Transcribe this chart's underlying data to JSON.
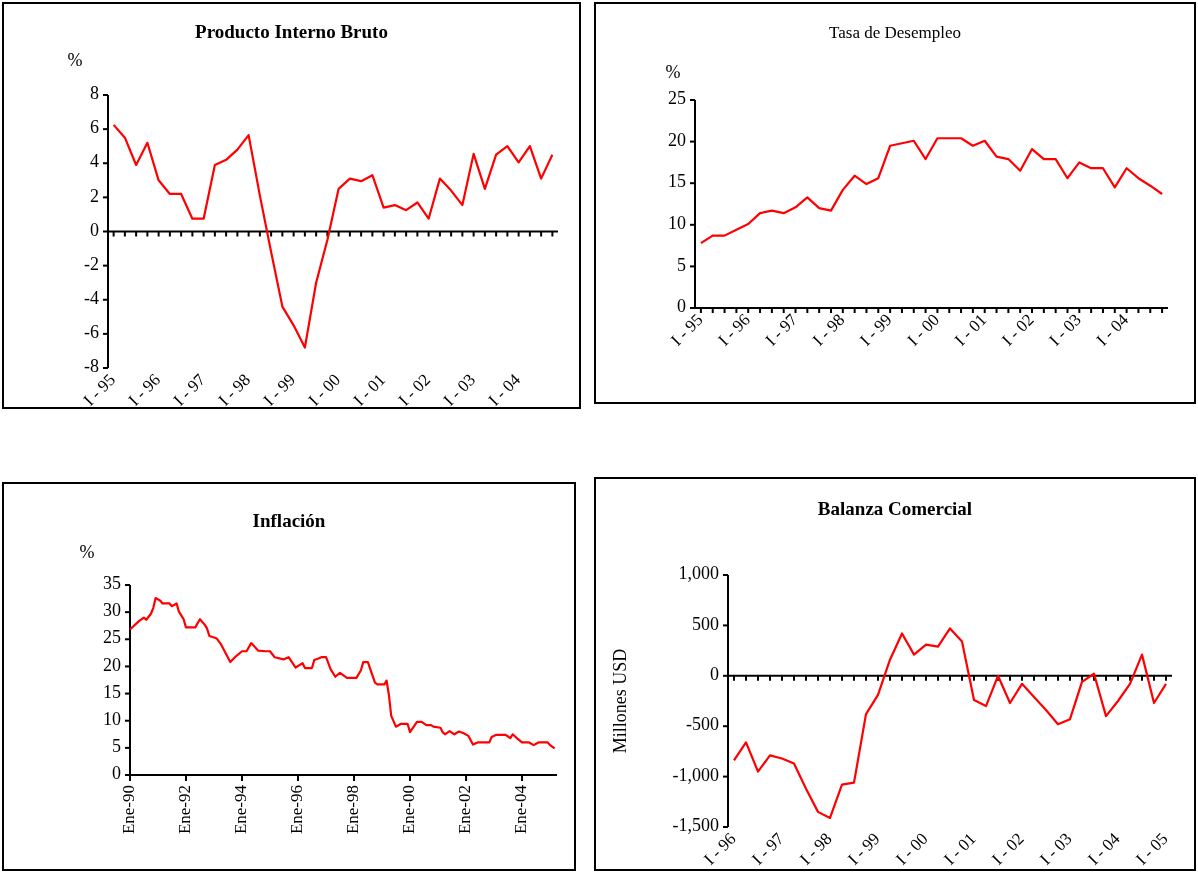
{
  "chart_data": [
    {
      "type": "line",
      "title": "Producto Interno Bruto",
      "ylabel": "%",
      "categories": [
        "I - 95",
        null,
        null,
        null,
        "I - 96",
        null,
        null,
        null,
        "I - 97",
        null,
        null,
        null,
        "I - 98",
        null,
        null,
        null,
        "I - 99",
        null,
        null,
        null,
        "I - 00",
        null,
        null,
        null,
        "I - 01",
        null,
        null,
        null,
        "I - 02",
        null,
        null,
        null,
        "I - 03",
        null,
        null,
        null,
        "I - 04",
        null,
        null,
        null
      ],
      "series": [
        {
          "color": "#ff0000",
          "values": [
            6.25,
            5.5,
            3.9,
            5.2,
            3.0,
            2.2,
            2.2,
            0.75,
            0.75,
            3.9,
            4.2,
            4.8,
            5.65,
            2.1,
            -1.2,
            -4.4,
            -5.5,
            -6.8,
            -3.0,
            -0.5,
            2.5,
            3.1,
            2.95,
            3.3,
            1.4,
            1.55,
            1.25,
            1.7,
            0.75,
            3.1,
            2.4,
            1.55,
            4.55,
            2.5,
            4.5,
            5.0,
            4.05,
            5.0,
            3.1,
            4.5
          ]
        }
      ],
      "ylim": [
        -8,
        8
      ],
      "yticks": [
        -8,
        -6,
        -4,
        -2,
        0,
        2,
        4,
        6,
        8
      ]
    },
    {
      "type": "line",
      "title": "Tasa de Desempleo",
      "ylabel": "%",
      "categories": [
        "I - 95",
        null,
        null,
        null,
        "I - 96",
        null,
        null,
        null,
        "I - 97",
        null,
        null,
        null,
        "I - 98",
        null,
        null,
        null,
        "I - 99",
        null,
        null,
        null,
        "I - 00",
        null,
        null,
        null,
        "I - 01",
        null,
        null,
        null,
        "I - 02",
        null,
        null,
        null,
        "I - 03",
        null,
        null,
        null,
        "I - 04",
        null,
        null,
        null
      ],
      "series": [
        {
          "color": "#ff0000",
          "values": [
            7.8,
            8.7,
            8.7,
            9.4,
            10.1,
            11.4,
            11.7,
            11.4,
            12.1,
            13.3,
            12.0,
            11.7,
            14.2,
            15.9,
            14.9,
            15.6,
            19.5,
            19.8,
            20.1,
            17.9,
            20.4,
            20.4,
            20.4,
            19.5,
            20.1,
            18.2,
            17.9,
            16.5,
            19.1,
            17.9,
            17.9,
            15.6,
            17.5,
            16.8,
            16.8,
            14.5,
            16.8,
            15.6,
            14.7,
            13.7
          ]
        }
      ],
      "ylim": [
        0,
        25
      ],
      "yticks": [
        0,
        5,
        10,
        15,
        20,
        25
      ]
    },
    {
      "type": "line",
      "title": "Inflación",
      "ylabel": "%",
      "x": [
        "1990-01",
        "1990-05",
        "1990-07",
        "1990-08",
        "1990-10",
        "1990-11",
        "1990-12",
        "1991-02",
        "1991-03",
        "1991-06",
        "1991-07",
        "1991-09",
        "1991-10",
        "1991-12",
        "1992-01",
        "1992-05",
        "1992-07",
        "1992-09",
        "1992-10",
        "1992-11",
        "1993-02",
        "1993-04",
        "1993-08",
        "1993-10",
        "1994-01",
        "1994-03",
        "1994-05",
        "1994-08",
        "1994-11",
        "1995-01",
        "1995-03",
        "1995-07",
        "1995-09",
        "1995-12",
        "1996-03",
        "1996-04",
        "1996-07",
        "1996-08",
        "1996-10",
        "1996-11",
        "1997-01",
        "1997-03",
        "1997-05",
        "1997-07",
        "1997-10",
        "1998-02",
        "1998-04",
        "1998-05",
        "1998-07",
        "1998-08",
        "1998-10",
        "1998-11",
        "1999-02",
        "1999-03",
        "1999-04",
        "1999-05",
        "1999-07",
        "1999-09",
        "1999-12",
        "2000-01",
        "2000-04",
        "2000-06",
        "2000-08",
        "2000-10",
        "2000-11",
        "2001-02",
        "2001-03",
        "2001-04",
        "2001-06",
        "2001-08",
        "2001-10",
        "2001-12",
        "2002-02",
        "2002-04",
        "2002-06",
        "2002-11",
        "2002-12",
        "2003-02",
        "2003-06",
        "2003-08",
        "2003-09",
        "2003-11",
        "2004-01",
        "2004-04",
        "2004-06",
        "2004-08",
        "2004-12",
        "2005-01",
        "2005-03"
      ],
      "series": [
        {
          "color": "#ff0000",
          "values": [
            26.8,
            28.4,
            29.0,
            28.6,
            29.7,
            30.8,
            32.6,
            32.1,
            31.6,
            31.6,
            31.1,
            31.6,
            30.1,
            28.7,
            27.2,
            27.2,
            28.7,
            27.7,
            27.0,
            25.6,
            25.2,
            24.1,
            20.8,
            21.7,
            22.8,
            22.8,
            24.3,
            22.9,
            22.8,
            22.8,
            21.7,
            21.3,
            21.7,
            19.8,
            20.6,
            19.7,
            19.7,
            21.2,
            21.5,
            21.7,
            21.7,
            19.5,
            18.1,
            18.8,
            17.9,
            17.9,
            19.3,
            20.8,
            20.8,
            19.5,
            17.0,
            16.7,
            16.7,
            17.4,
            14.7,
            10.9,
            8.9,
            9.4,
            9.4,
            7.9,
            9.8,
            9.8,
            9.2,
            9.2,
            8.9,
            8.7,
            7.9,
            7.5,
            8.1,
            7.5,
            8.0,
            7.7,
            7.2,
            5.6,
            6.0,
            6.0,
            7.0,
            7.4,
            7.4,
            6.8,
            7.5,
            6.7,
            6.0,
            6.0,
            5.5,
            6.0,
            6.0,
            5.5,
            4.9
          ]
        }
      ],
      "xlim": [
        "1990-01",
        "2005-04"
      ],
      "xticks": [
        {
          "value": "1990-01",
          "label": "Ene-90"
        },
        {
          "value": "1992-01",
          "label": "Ene-92"
        },
        {
          "value": "1994-01",
          "label": "Ene-94"
        },
        {
          "value": "1996-01",
          "label": "Ene-96"
        },
        {
          "value": "1998-01",
          "label": "Ene-98"
        },
        {
          "value": "2000-01",
          "label": "Ene-00"
        },
        {
          "value": "2002-01",
          "label": "Ene-02"
        },
        {
          "value": "2004-01",
          "label": "Ene-04"
        }
      ],
      "ylim": [
        0,
        35
      ],
      "yticks": [
        0,
        5,
        10,
        15,
        20,
        25,
        30,
        35
      ]
    },
    {
      "type": "line",
      "title": "Balanza Comercial",
      "ylabel": "Millones USD",
      "categories": [
        "I - 96",
        null,
        null,
        null,
        "I - 97",
        null,
        null,
        null,
        "I - 98",
        null,
        null,
        null,
        "I - 99",
        null,
        null,
        null,
        "I - 00",
        null,
        null,
        null,
        "I - 01",
        null,
        null,
        null,
        "I - 02",
        null,
        null,
        null,
        "I - 03",
        null,
        null,
        null,
        "I - 04",
        null,
        null,
        null,
        "I - 05"
      ],
      "series": [
        {
          "color": "#ff0000",
          "values": [
            -840,
            -660,
            -950,
            -790,
            -820,
            -870,
            -1120,
            -1350,
            -1410,
            -1080,
            -1060,
            -380,
            -190,
            160,
            420,
            210,
            310,
            290,
            470,
            340,
            -240,
            -300,
            0,
            -270,
            -80,
            -210,
            -340,
            -480,
            -430,
            -60,
            20,
            -400,
            -250,
            -80,
            210,
            -270,
            -80
          ]
        }
      ],
      "ylim": [
        -1500,
        1000
      ],
      "yticks": [
        {
          "value": -1500,
          "label": "-1,500"
        },
        {
          "value": -1000,
          "label": "-1,000"
        },
        {
          "value": -500,
          "label": "-500"
        },
        0,
        500,
        {
          "value": 1000,
          "label": "1,000"
        }
      ]
    }
  ]
}
